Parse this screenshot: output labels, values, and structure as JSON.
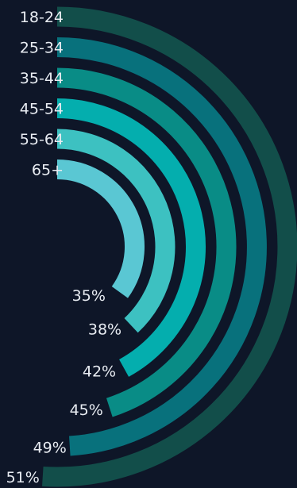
{
  "chart_data": {
    "type": "radial_bar",
    "categories": [
      "18-24",
      "25-34",
      "35-44",
      "45-54",
      "55-64",
      "65+"
    ],
    "values": [
      51,
      49,
      45,
      42,
      38,
      35
    ],
    "value_labels": [
      "51%",
      "49%",
      "45%",
      "42%",
      "38%",
      "35%"
    ],
    "value_unit": "%",
    "max_value": 100,
    "colors": [
      "#124e4a",
      "#08717c",
      "#098c86",
      "#04aeae",
      "#3dc1c1",
      "#5ac7d3"
    ],
    "background": "#0e1628",
    "text_color": "#e8ecf2"
  }
}
